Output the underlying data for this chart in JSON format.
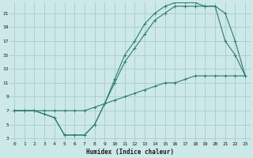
{
  "xlabel": "Humidex (Indice chaleur)",
  "background_color": "#cce8e8",
  "line_color": "#2e7d6e",
  "grid_color": "#aacccc",
  "xlim": [
    -0.5,
    23.5
  ],
  "ylim": [
    2.5,
    22.5
  ],
  "xticks": [
    0,
    1,
    2,
    3,
    4,
    5,
    6,
    7,
    8,
    9,
    10,
    11,
    12,
    13,
    14,
    15,
    16,
    17,
    18,
    19,
    20,
    21,
    22,
    23
  ],
  "yticks": [
    3,
    5,
    7,
    9,
    11,
    13,
    15,
    17,
    19,
    21
  ],
  "line1_x": [
    0,
    1,
    2,
    3,
    4,
    5,
    6,
    7,
    8,
    9,
    10,
    11,
    12,
    13,
    14,
    15,
    16,
    17,
    18,
    19,
    20,
    21,
    22,
    23
  ],
  "line1_y": [
    7,
    7,
    7,
    7,
    7,
    7,
    7,
    7,
    7.5,
    8,
    8.5,
    9,
    9.5,
    10,
    10.5,
    11,
    11,
    11.5,
    12,
    12,
    12,
    12,
    12,
    12
  ],
  "line2_x": [
    0,
    1,
    2,
    3,
    4,
    5,
    6,
    7,
    8,
    9,
    10,
    11,
    12,
    13,
    14,
    15,
    16,
    17,
    18,
    19,
    20,
    21,
    22,
    23
  ],
  "line2_y": [
    7,
    7,
    7,
    6.5,
    6,
    3.5,
    3.5,
    3.5,
    5,
    8,
    11,
    14,
    16,
    18,
    20,
    21,
    22,
    22,
    22,
    22,
    22,
    17,
    15,
    12
  ],
  "line3_x": [
    0,
    1,
    2,
    3,
    4,
    5,
    6,
    7,
    8,
    9,
    10,
    11,
    12,
    13,
    14,
    15,
    16,
    17,
    18,
    19,
    20,
    21,
    22,
    23
  ],
  "line3_y": [
    7,
    7,
    7,
    6.5,
    6,
    3.5,
    3.5,
    3.5,
    5,
    8,
    11.5,
    15,
    17,
    19.5,
    21,
    22,
    22.5,
    22.5,
    22.5,
    22,
    22,
    21,
    17,
    12
  ]
}
